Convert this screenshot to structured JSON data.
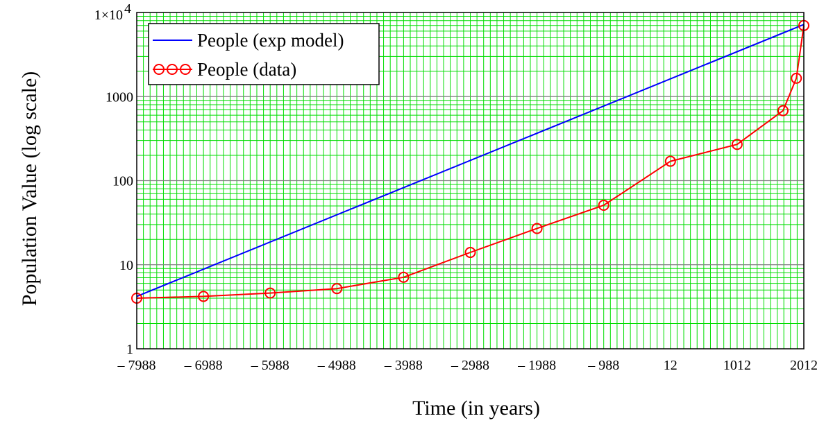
{
  "chart_data": {
    "type": "line",
    "title": "",
    "xlabel": "Time (in years)",
    "ylabel": "Population Value (log scale)",
    "x_ticks": [
      "– 7988",
      "– 6988",
      "– 5988",
      "– 4988",
      "– 3988",
      "– 2988",
      "– 1988",
      "– 988",
      "12",
      "1012",
      "2012"
    ],
    "x_tick_values": [
      -7988,
      -6988,
      -5988,
      -4988,
      -3988,
      -2988,
      -1988,
      -988,
      12,
      1012,
      2012
    ],
    "y_ticks": [
      "1",
      "10",
      "100",
      "1000",
      "1×10",
      "4"
    ],
    "y_scale": "log",
    "ylim": [
      1,
      10000
    ],
    "xlim": [
      -7988,
      2012
    ],
    "grid": true,
    "legend_position": "top-left",
    "series": [
      {
        "name": "People (exp model)",
        "style": "line",
        "color": "#0000ff",
        "x": [
          -7988,
          2012
        ],
        "y": [
          4.2,
          7200
        ]
      },
      {
        "name": "People (data)",
        "style": "line+circle",
        "color": "#ff0000",
        "x": [
          -7988,
          -6988,
          -5988,
          -4988,
          -3988,
          -2988,
          -1988,
          -988,
          12,
          1012,
          1700,
          1900,
          2012
        ],
        "y": [
          4,
          4.2,
          4.6,
          5.2,
          7.1,
          14,
          27,
          51,
          170,
          270,
          680,
          1650,
          7000
        ]
      }
    ]
  },
  "colors": {
    "grid_major": "#808080",
    "grid_minor": "#00dd00",
    "axis": "#000000"
  }
}
